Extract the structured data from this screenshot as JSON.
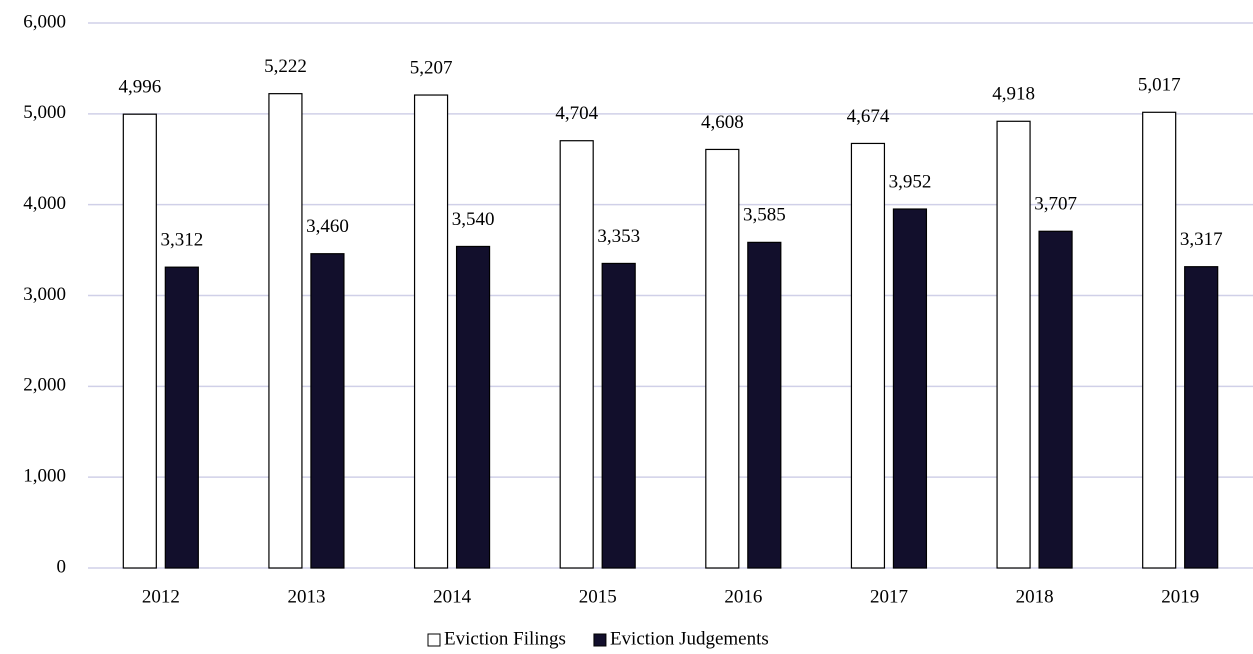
{
  "chart_data": {
    "type": "bar",
    "categories": [
      "2012",
      "2013",
      "2014",
      "2015",
      "2016",
      "2017",
      "2018",
      "2019"
    ],
    "series": [
      {
        "name": "Eviction Filings",
        "color": "#ffffff",
        "values": [
          4996,
          5222,
          5207,
          4704,
          4608,
          4674,
          4918,
          5017
        ],
        "value_labels": [
          "4,996",
          "5,222",
          "5,207",
          "4,704",
          "4,608",
          "4,674",
          "4,918",
          "5,017"
        ]
      },
      {
        "name": "Eviction Judgements",
        "color": "#120f2c",
        "values": [
          3312,
          3460,
          3540,
          3353,
          3585,
          3952,
          3707,
          3317
        ],
        "value_labels": [
          "3,312",
          "3,460",
          "3,540",
          "3,353",
          "3,585",
          "3,952",
          "3,707",
          "3,317"
        ]
      }
    ],
    "ylim": [
      0,
      6000
    ],
    "yticks": [
      0,
      {
        "value": 1000,
        "label": "1,000"
      },
      {
        "value": 2000,
        "label": "2,000"
      },
      {
        "value": 3000,
        "label": "3,000"
      },
      {
        "value": 4000,
        "label": "4,000"
      },
      {
        "value": 5000,
        "label": "5,000"
      },
      {
        "value": 6000,
        "label": "6,000"
      }
    ],
    "grid": true,
    "legend": "bottom"
  }
}
